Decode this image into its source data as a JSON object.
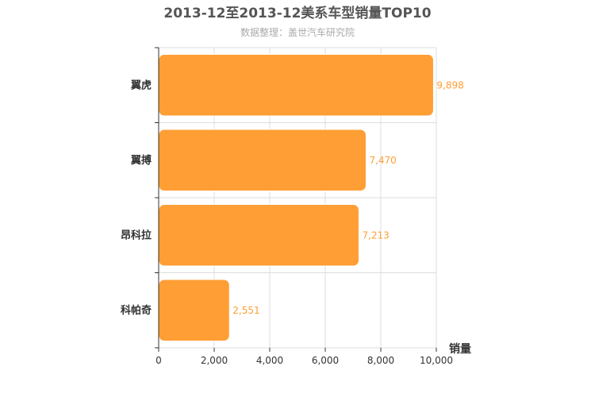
{
  "title": "2013-12至2013-12美系车型销量TOP10",
  "subtitle": "数据整理：盖世汽车研究院",
  "colors": {
    "bar": "#ff9e34",
    "label": "#ff9e34",
    "grid": "#dddddd",
    "axis": "#333333"
  },
  "chart_data": {
    "type": "bar",
    "orientation": "horizontal",
    "categories": [
      "翼虎",
      "翼搏",
      "昂科拉",
      "科帕奇"
    ],
    "values": [
      9898,
      7470,
      7213,
      2551
    ],
    "value_labels": [
      "9,898",
      "7,470",
      "7,213",
      "2,551"
    ],
    "xlabel": "销量",
    "xlim": [
      0,
      10000
    ],
    "xticks": [
      0,
      2000,
      4000,
      6000,
      8000,
      10000
    ],
    "xtick_labels": [
      "0",
      "2,000",
      "4,000",
      "6,000",
      "8,000",
      "10,000"
    ],
    "grid": true,
    "legend": "none"
  }
}
